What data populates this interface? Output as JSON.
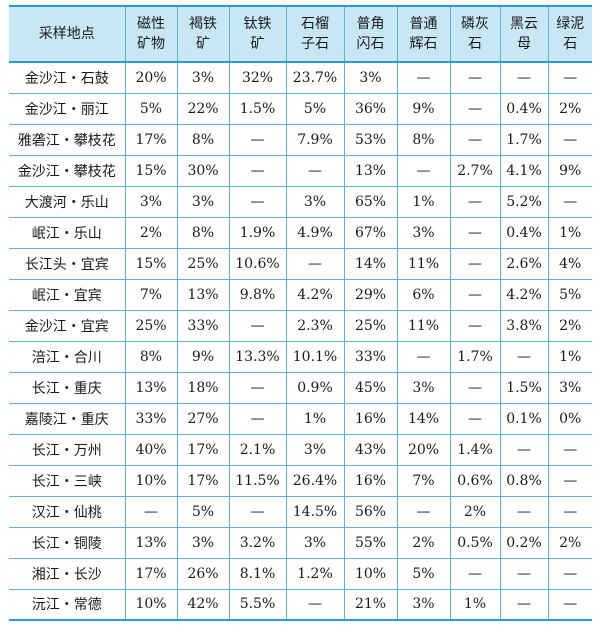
{
  "table": {
    "headers": [
      [
        "采样地点"
      ],
      [
        "磁性",
        "矿物"
      ],
      [
        "褐铁",
        "矿"
      ],
      [
        "钛铁",
        "矿"
      ],
      [
        "石榴",
        "子石"
      ],
      [
        "普角",
        "闪石"
      ],
      [
        "普通",
        "辉石"
      ],
      [
        "磷灰",
        "石"
      ],
      [
        "黑云",
        "母"
      ],
      [
        "绿泥",
        "石"
      ]
    ],
    "rows": [
      [
        "金沙江・石鼓",
        "20%",
        "3%",
        "32%",
        "23.7%",
        "3%",
        "—",
        "—",
        "—",
        "—"
      ],
      [
        "金沙江・丽江",
        "5%",
        "22%",
        "1.5%",
        "5%",
        "36%",
        "9%",
        "—",
        "0.4%",
        "2%"
      ],
      [
        "雅砻江・攀枝花",
        "17%",
        "8%",
        "—",
        "7.9%",
        "53%",
        "8%",
        "—",
        "1.7%",
        "—"
      ],
      [
        "金沙江・攀枝花",
        "15%",
        "30%",
        "—",
        "—",
        "13%",
        "—",
        "2.7%",
        "4.1%",
        "9%"
      ],
      [
        "大渡河・乐山",
        "3%",
        "3%",
        "—",
        "3%",
        "65%",
        "1%",
        "—",
        "5.2%",
        "—"
      ],
      [
        "岷江・乐山",
        "2%",
        "8%",
        "1.9%",
        "4.9%",
        "67%",
        "3%",
        "—",
        "0.4%",
        "1%"
      ],
      [
        "长江头・宜宾",
        "15%",
        "25%",
        "10.6%",
        "—",
        "14%",
        "11%",
        "—",
        "2.6%",
        "4%"
      ],
      [
        "岷江・宜宾",
        "7%",
        "13%",
        "9.8%",
        "4.2%",
        "29%",
        "6%",
        "—",
        "4.2%",
        "5%"
      ],
      [
        "金沙江・宜宾",
        "25%",
        "33%",
        "—",
        "2.3%",
        "25%",
        "11%",
        "—",
        "3.8%",
        "2%"
      ],
      [
        "涪江・合川",
        "8%",
        "9%",
        "13.3%",
        "10.1%",
        "33%",
        "—",
        "1.7%",
        "—",
        "1%"
      ],
      [
        "长江・重庆",
        "13%",
        "18%",
        "—",
        "0.9%",
        "45%",
        "3%",
        "—",
        "1.5%",
        "3%"
      ],
      [
        "嘉陵江・重庆",
        "33%",
        "27%",
        "—",
        "1%",
        "16%",
        "14%",
        "—",
        "0.1%",
        "0%"
      ],
      [
        "长江・万州",
        "40%",
        "17%",
        "2.1%",
        "3%",
        "43%",
        "20%",
        "1.4%",
        "—",
        "—"
      ],
      [
        "长江・三峡",
        "10%",
        "17%",
        "11.5%",
        "26.4%",
        "16%",
        "7%",
        "0.6%",
        "0.8%",
        "—"
      ],
      [
        "汉江・仙桃",
        "—",
        "5%",
        "—",
        "14.5%",
        "56%",
        "—",
        "2%",
        "—",
        "—"
      ],
      [
        "长江・铜陵",
        "13%",
        "3%",
        "3.2%",
        "3%",
        "55%",
        "2%",
        "0.5%",
        "0.2%",
        "2%"
      ],
      [
        "湘江・长沙",
        "17%",
        "26%",
        "8.1%",
        "1.2%",
        "10%",
        "5%",
        "—",
        "—",
        "—"
      ],
      [
        "沅江・常德",
        "10%",
        "42%",
        "5.5%",
        "—",
        "21%",
        "3%",
        "1%",
        "—",
        "—"
      ]
    ]
  }
}
